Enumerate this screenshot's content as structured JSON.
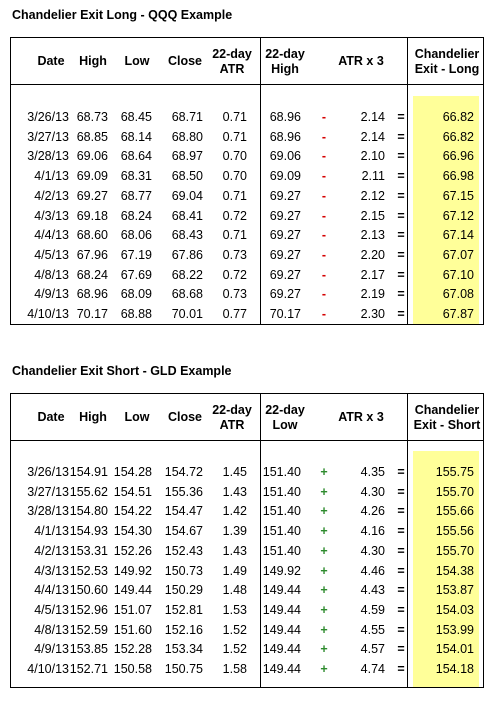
{
  "long": {
    "title": "Chandelier Exit Long - QQQ Example",
    "headers": {
      "date": "Date",
      "high": "High",
      "low": "Low",
      "close": "Close",
      "atr": "22-day\nATR",
      "hl": "22-day\nHigh",
      "atrx3": "ATR x 3",
      "exit": "Chandelier\nExit - Long"
    },
    "rows": [
      {
        "date": "3/26/13",
        "high": "68.73",
        "low": "68.45",
        "close": "68.71",
        "atr": "0.71",
        "hl": "68.96",
        "op": "-",
        "atrx3": "2.14",
        "eq": "=",
        "exit": "66.82"
      },
      {
        "date": "3/27/13",
        "high": "68.85",
        "low": "68.14",
        "close": "68.80",
        "atr": "0.71",
        "hl": "68.96",
        "op": "-",
        "atrx3": "2.14",
        "eq": "=",
        "exit": "66.82"
      },
      {
        "date": "3/28/13",
        "high": "69.06",
        "low": "68.64",
        "close": "68.97",
        "atr": "0.70",
        "hl": "69.06",
        "op": "-",
        "atrx3": "2.10",
        "eq": "=",
        "exit": "66.96"
      },
      {
        "date": "4/1/13",
        "high": "69.09",
        "low": "68.31",
        "close": "68.50",
        "atr": "0.70",
        "hl": "69.09",
        "op": "-",
        "atrx3": "2.11",
        "eq": "=",
        "exit": "66.98"
      },
      {
        "date": "4/2/13",
        "high": "69.27",
        "low": "68.77",
        "close": "69.04",
        "atr": "0.71",
        "hl": "69.27",
        "op": "-",
        "atrx3": "2.12",
        "eq": "=",
        "exit": "67.15"
      },
      {
        "date": "4/3/13",
        "high": "69.18",
        "low": "68.24",
        "close": "68.41",
        "atr": "0.72",
        "hl": "69.27",
        "op": "-",
        "atrx3": "2.15",
        "eq": "=",
        "exit": "67.12"
      },
      {
        "date": "4/4/13",
        "high": "68.60",
        "low": "68.06",
        "close": "68.43",
        "atr": "0.71",
        "hl": "69.27",
        "op": "-",
        "atrx3": "2.13",
        "eq": "=",
        "exit": "67.14"
      },
      {
        "date": "4/5/13",
        "high": "67.96",
        "low": "67.19",
        "close": "67.86",
        "atr": "0.73",
        "hl": "69.27",
        "op": "-",
        "atrx3": "2.20",
        "eq": "=",
        "exit": "67.07"
      },
      {
        "date": "4/8/13",
        "high": "68.24",
        "low": "67.69",
        "close": "68.22",
        "atr": "0.72",
        "hl": "69.27",
        "op": "-",
        "atrx3": "2.17",
        "eq": "=",
        "exit": "67.10"
      },
      {
        "date": "4/9/13",
        "high": "68.96",
        "low": "68.09",
        "close": "68.68",
        "atr": "0.73",
        "hl": "69.27",
        "op": "-",
        "atrx3": "2.19",
        "eq": "=",
        "exit": "67.08"
      },
      {
        "date": "4/10/13",
        "high": "70.17",
        "low": "68.88",
        "close": "70.01",
        "atr": "0.77",
        "hl": "70.17",
        "op": "-",
        "atrx3": "2.30",
        "eq": "=",
        "exit": "67.87"
      }
    ]
  },
  "short": {
    "title": "Chandelier Exit Short - GLD Example",
    "headers": {
      "date": "Date",
      "high": "High",
      "low": "Low",
      "close": "Close",
      "atr": "22-day\nATR",
      "hl": "22-day\nLow",
      "atrx3": "ATR x 3",
      "exit": "Chandelier\nExit - Short"
    },
    "rows": [
      {
        "date": "3/26/13",
        "high": "154.91",
        "low": "154.28",
        "close": "154.72",
        "atr": "1.45",
        "hl": "151.40",
        "op": "+",
        "atrx3": "4.35",
        "eq": "=",
        "exit": "155.75"
      },
      {
        "date": "3/27/13",
        "high": "155.62",
        "low": "154.51",
        "close": "155.36",
        "atr": "1.43",
        "hl": "151.40",
        "op": "+",
        "atrx3": "4.30",
        "eq": "=",
        "exit": "155.70"
      },
      {
        "date": "3/28/13",
        "high": "154.80",
        "low": "154.22",
        "close": "154.47",
        "atr": "1.42",
        "hl": "151.40",
        "op": "+",
        "atrx3": "4.26",
        "eq": "=",
        "exit": "155.66"
      },
      {
        "date": "4/1/13",
        "high": "154.93",
        "low": "154.30",
        "close": "154.67",
        "atr": "1.39",
        "hl": "151.40",
        "op": "+",
        "atrx3": "4.16",
        "eq": "=",
        "exit": "155.56"
      },
      {
        "date": "4/2/13",
        "high": "153.31",
        "low": "152.26",
        "close": "152.43",
        "atr": "1.43",
        "hl": "151.40",
        "op": "+",
        "atrx3": "4.30",
        "eq": "=",
        "exit": "155.70"
      },
      {
        "date": "4/3/13",
        "high": "152.53",
        "low": "149.92",
        "close": "150.73",
        "atr": "1.49",
        "hl": "149.92",
        "op": "+",
        "atrx3": "4.46",
        "eq": "=",
        "exit": "154.38"
      },
      {
        "date": "4/4/13",
        "high": "150.60",
        "low": "149.44",
        "close": "150.29",
        "atr": "1.48",
        "hl": "149.44",
        "op": "+",
        "atrx3": "4.43",
        "eq": "=",
        "exit": "153.87"
      },
      {
        "date": "4/5/13",
        "high": "152.96",
        "low": "151.07",
        "close": "152.81",
        "atr": "1.53",
        "hl": "149.44",
        "op": "+",
        "atrx3": "4.59",
        "eq": "=",
        "exit": "154.03"
      },
      {
        "date": "4/8/13",
        "high": "152.59",
        "low": "151.60",
        "close": "152.16",
        "atr": "1.52",
        "hl": "149.44",
        "op": "+",
        "atrx3": "4.55",
        "eq": "=",
        "exit": "153.99"
      },
      {
        "date": "4/9/13",
        "high": "153.85",
        "low": "152.28",
        "close": "153.34",
        "atr": "1.52",
        "hl": "149.44",
        "op": "+",
        "atrx3": "4.57",
        "eq": "=",
        "exit": "154.01"
      },
      {
        "date": "4/10/13",
        "high": "152.71",
        "low": "150.58",
        "close": "150.75",
        "atr": "1.58",
        "hl": "149.44",
        "op": "+",
        "atrx3": "4.74",
        "eq": "=",
        "exit": "154.18"
      }
    ]
  },
  "colors": {
    "highlight": "#ffff99",
    "minus": "#d40000",
    "plus": "#2e8b2e"
  }
}
